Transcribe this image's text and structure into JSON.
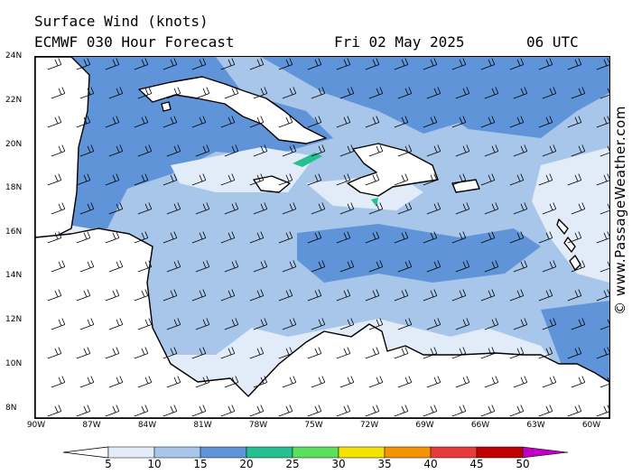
{
  "header": {
    "title": "Surface Wind (knots)",
    "model": "ECMWF 030 Hour Forecast",
    "date": "Fri 02 May 2025",
    "time": "06 UTC"
  },
  "lat_labels": [
    "24N",
    "22N",
    "20N",
    "18N",
    "16N",
    "14N",
    "12N",
    "10N",
    "8N"
  ],
  "lon_labels": [
    "90W",
    "87W",
    "84W",
    "81W",
    "78W",
    "75W",
    "72W",
    "69W",
    "66W",
    "63W",
    "60W"
  ],
  "copyright": "© www.PassageWeather.com",
  "colorbar": {
    "labels": [
      "5",
      "10",
      "15",
      "20",
      "25",
      "30",
      "35",
      "40",
      "45",
      "50"
    ],
    "colors": [
      "#e2ecf9",
      "#a8c6e9",
      "#5f94d9",
      "#25c092",
      "#5ae05a",
      "#f4e200",
      "#f59300",
      "#e83a3a",
      "#c00000",
      "#c000c0"
    ]
  },
  "map_colors": {
    "sea_base": "#a8c6e9",
    "calm": "#e2ecf9",
    "moderate": "#5f94d9",
    "strong": "#25c092",
    "land": "#ffffff",
    "coast": "#000000"
  }
}
